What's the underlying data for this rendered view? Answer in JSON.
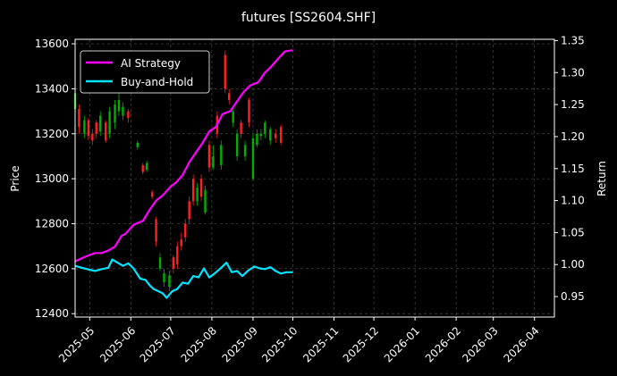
{
  "chart_data": {
    "type": "line",
    "title": "futures [SS2604.SHF]",
    "ylabel_left": "Price",
    "ylabel_right": "Return",
    "grid": true,
    "legend_position": "top-left",
    "background": "#000000",
    "x_range": [
      "2025-04-20",
      "2026-04-16"
    ],
    "y_left_range": [
      12385,
      13620
    ],
    "y_right_range": [
      0.918,
      1.352
    ],
    "x_ticks": [
      "2025-05",
      "2025-06",
      "2025-07",
      "2025-08",
      "2025-09",
      "2025-10",
      "2025-11",
      "2025-12",
      "2026-01",
      "2026-02",
      "2026-03",
      "2026-04"
    ],
    "y_left_ticks": [
      12400,
      12600,
      12800,
      13000,
      13200,
      13400,
      13600
    ],
    "y_right_ticks": [
      0.95,
      1.0,
      1.05,
      1.1,
      1.15,
      1.2,
      1.25,
      1.3,
      1.35
    ],
    "candle_colors": {
      "up": "#ff2020",
      "down": "#00b000"
    },
    "series": [
      {
        "name": "AI Strategy",
        "color": "#ff00ff",
        "axis": "right",
        "points": [
          [
            "2025-04-20",
            1.005
          ],
          [
            "2025-04-25",
            1.01
          ],
          [
            "2025-05-01",
            1.015
          ],
          [
            "2025-05-05",
            1.018
          ],
          [
            "2025-05-10",
            1.018
          ],
          [
            "2025-05-15",
            1.022
          ],
          [
            "2025-05-20",
            1.028
          ],
          [
            "2025-05-25",
            1.045
          ],
          [
            "2025-05-28",
            1.048
          ],
          [
            "2025-06-03",
            1.062
          ],
          [
            "2025-06-06",
            1.065
          ],
          [
            "2025-06-10",
            1.068
          ],
          [
            "2025-06-15",
            1.085
          ],
          [
            "2025-06-20",
            1.1
          ],
          [
            "2025-06-25",
            1.108
          ],
          [
            "2025-07-01",
            1.122
          ],
          [
            "2025-07-05",
            1.128
          ],
          [
            "2025-07-10",
            1.14
          ],
          [
            "2025-07-15",
            1.16
          ],
          [
            "2025-07-20",
            1.175
          ],
          [
            "2025-07-25",
            1.19
          ],
          [
            "2025-07-30",
            1.208
          ],
          [
            "2025-08-04",
            1.215
          ],
          [
            "2025-08-09",
            1.235
          ],
          [
            "2025-08-15",
            1.24
          ],
          [
            "2025-08-20",
            1.255
          ],
          [
            "2025-08-25",
            1.27
          ],
          [
            "2025-08-30",
            1.28
          ],
          [
            "2025-09-05",
            1.285
          ],
          [
            "2025-09-10",
            1.3
          ],
          [
            "2025-09-15",
            1.31
          ],
          [
            "2025-09-20",
            1.322
          ],
          [
            "2025-09-25",
            1.333
          ],
          [
            "2025-10-01",
            1.335
          ]
        ]
      },
      {
        "name": "Buy-and-Hold",
        "color": "#00e5ff",
        "axis": "right",
        "points": [
          [
            "2025-04-20",
            0.998
          ],
          [
            "2025-04-25",
            0.995
          ],
          [
            "2025-05-01",
            0.992
          ],
          [
            "2025-05-05",
            0.99
          ],
          [
            "2025-05-10",
            0.993
          ],
          [
            "2025-05-15",
            0.995
          ],
          [
            "2025-05-18",
            1.008
          ],
          [
            "2025-05-22",
            1.003
          ],
          [
            "2025-05-26",
            0.998
          ],
          [
            "2025-05-30",
            1.002
          ],
          [
            "2025-06-03",
            0.994
          ],
          [
            "2025-06-08",
            0.978
          ],
          [
            "2025-06-12",
            0.976
          ],
          [
            "2025-06-15",
            0.968
          ],
          [
            "2025-06-18",
            0.962
          ],
          [
            "2025-06-22",
            0.958
          ],
          [
            "2025-06-25",
            0.955
          ],
          [
            "2025-06-28",
            0.948
          ],
          [
            "2025-07-02",
            0.958
          ],
          [
            "2025-07-06",
            0.962
          ],
          [
            "2025-07-10",
            0.972
          ],
          [
            "2025-07-14",
            0.97
          ],
          [
            "2025-07-18",
            0.982
          ],
          [
            "2025-07-22",
            0.98
          ],
          [
            "2025-07-26",
            0.994
          ],
          [
            "2025-07-30",
            0.98
          ],
          [
            "2025-08-03",
            0.986
          ],
          [
            "2025-08-08",
            0.995
          ],
          [
            "2025-08-12",
            1.003
          ],
          [
            "2025-08-16",
            0.988
          ],
          [
            "2025-08-20",
            0.99
          ],
          [
            "2025-08-24",
            0.982
          ],
          [
            "2025-08-28",
            0.99
          ],
          [
            "2025-09-02",
            0.997
          ],
          [
            "2025-09-06",
            0.994
          ],
          [
            "2025-09-10",
            0.993
          ],
          [
            "2025-09-14",
            0.996
          ],
          [
            "2025-09-18",
            0.99
          ],
          [
            "2025-09-22",
            0.986
          ],
          [
            "2025-09-26",
            0.988
          ],
          [
            "2025-10-01",
            0.988
          ]
        ]
      }
    ],
    "candles": [
      [
        "2025-04-20",
        13380,
        13310,
        13400,
        13300
      ],
      [
        "2025-04-23",
        13230,
        13310,
        13330,
        13200
      ],
      [
        "2025-04-27",
        13260,
        13200,
        13280,
        13180
      ],
      [
        "2025-04-30",
        13190,
        13260,
        13270,
        13170
      ],
      [
        "2025-05-03",
        13170,
        13200,
        13220,
        13150
      ],
      [
        "2025-05-06",
        13200,
        13250,
        13260,
        13180
      ],
      [
        "2025-05-09",
        13280,
        13210,
        13300,
        13190
      ],
      [
        "2025-05-13",
        13170,
        13250,
        13260,
        13160
      ],
      [
        "2025-05-16",
        13300,
        13200,
        13320,
        13180
      ],
      [
        "2025-05-20",
        13330,
        13250,
        13350,
        13220
      ],
      [
        "2025-05-23",
        13350,
        13300,
        13420,
        13280
      ],
      [
        "2025-05-26",
        13320,
        13280,
        13340,
        13260
      ],
      [
        "2025-05-30",
        13270,
        13300,
        13310,
        13250
      ],
      [
        "2025-06-06",
        13160,
        13140,
        13170,
        13130
      ],
      [
        "2025-06-10",
        13030,
        13060,
        13070,
        13020
      ],
      [
        "2025-06-13",
        13070,
        13040,
        13080,
        13030
      ],
      [
        "2025-06-17",
        12920,
        12940,
        12950,
        12910
      ],
      [
        "2025-06-20",
        12720,
        12820,
        12830,
        12700
      ],
      [
        "2025-06-23",
        12650,
        12600,
        12670,
        12590
      ],
      [
        "2025-06-26",
        12580,
        12540,
        12600,
        12520
      ],
      [
        "2025-06-30",
        12570,
        12520,
        12590,
        12500
      ],
      [
        "2025-07-03",
        12600,
        12650,
        12660,
        12580
      ],
      [
        "2025-07-06",
        12620,
        12700,
        12720,
        12600
      ],
      [
        "2025-07-09",
        12700,
        12730,
        12760,
        12680
      ],
      [
        "2025-07-12",
        12740,
        12800,
        12820,
        12720
      ],
      [
        "2025-07-15",
        12820,
        12900,
        12920,
        12800
      ],
      [
        "2025-07-18",
        12900,
        13000,
        13020,
        12880
      ],
      [
        "2025-07-21",
        12960,
        12900,
        12980,
        12880
      ],
      [
        "2025-07-24",
        12920,
        13000,
        13020,
        12900
      ],
      [
        "2025-07-27",
        12950,
        12850,
        12970,
        12840
      ],
      [
        "2025-07-30",
        13050,
        13150,
        13170,
        13030
      ],
      [
        "2025-08-02",
        13100,
        13050,
        13150,
        13040
      ],
      [
        "2025-08-05",
        13200,
        13280,
        13300,
        13180
      ],
      [
        "2025-08-08",
        13150,
        13060,
        13170,
        13040
      ],
      [
        "2025-08-11",
        13400,
        13550,
        13570,
        13380
      ],
      [
        "2025-08-14",
        13350,
        13380,
        13400,
        13330
      ],
      [
        "2025-08-17",
        13300,
        13250,
        13320,
        13230
      ],
      [
        "2025-08-20",
        13200,
        13100,
        13220,
        13080
      ],
      [
        "2025-08-23",
        13200,
        13250,
        13260,
        13180
      ],
      [
        "2025-08-26",
        13150,
        13100,
        13170,
        13080
      ],
      [
        "2025-08-29",
        13250,
        13350,
        13360,
        13230
      ],
      [
        "2025-09-01",
        13180,
        13000,
        13200,
        12990
      ],
      [
        "2025-09-04",
        13200,
        13150,
        13220,
        13140
      ],
      [
        "2025-09-07",
        13200,
        13190,
        13220,
        13170
      ],
      [
        "2025-09-10",
        13250,
        13200,
        13260,
        13180
      ],
      [
        "2025-09-14",
        13220,
        13170,
        13230,
        13150
      ],
      [
        "2025-09-18",
        13180,
        13200,
        13220,
        13160
      ],
      [
        "2025-09-22",
        13160,
        13230,
        13240,
        13150
      ]
    ]
  }
}
